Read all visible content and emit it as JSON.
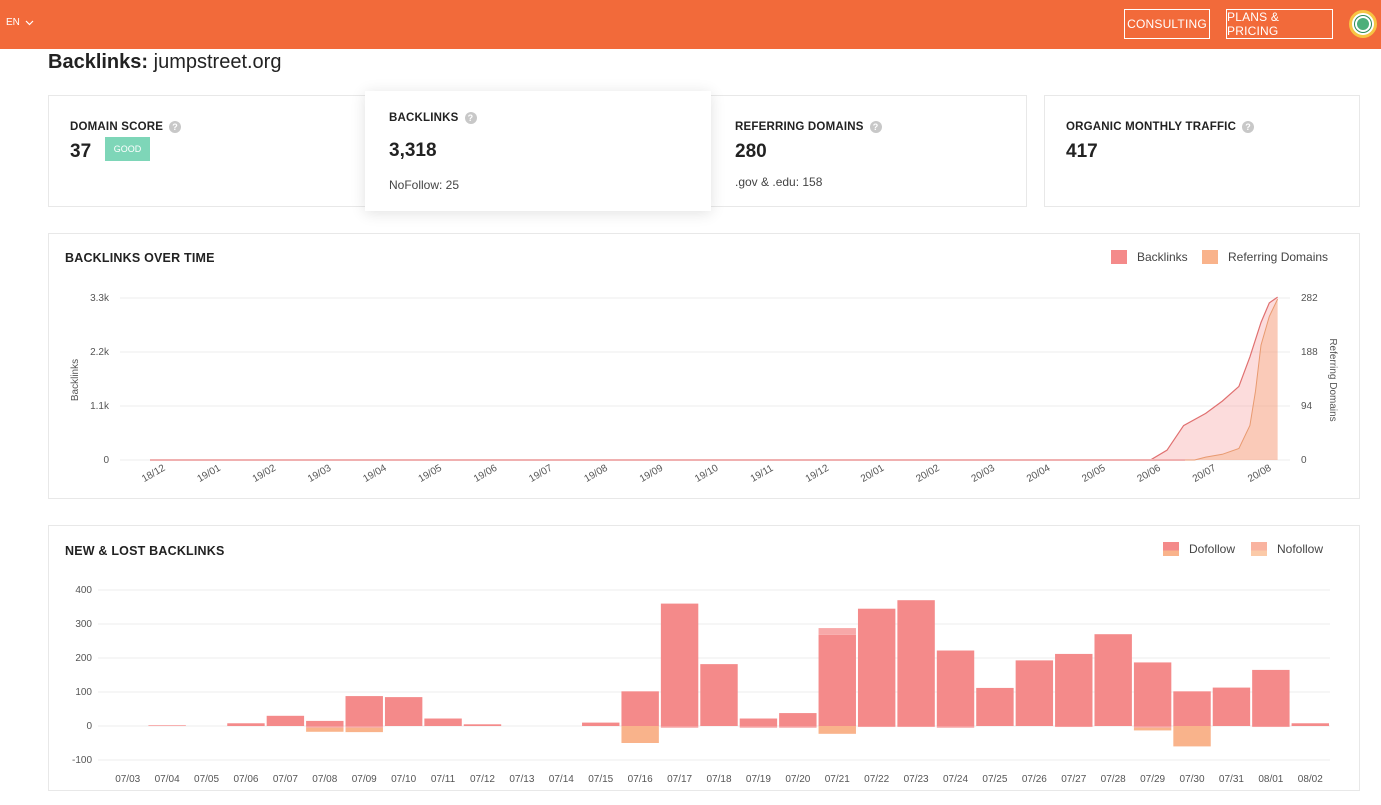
{
  "header": {
    "language": "EN",
    "consulting_label": "CONSULTING",
    "plans_label": "PLANS & PRICING",
    "brand_color": "#f26a3a"
  },
  "page": {
    "title_label": "Backlinks:",
    "title_domain": "jumpstreet.org"
  },
  "metrics": {
    "domain_score": {
      "title": "DOMAIN SCORE",
      "value": "37",
      "badge": "GOOD"
    },
    "backlinks": {
      "title": "BACKLINKS",
      "value": "3,318",
      "sub": "NoFollow: 25"
    },
    "referring_domains": {
      "title": "REFERRING DOMAINS",
      "value": "280",
      "sub": ".gov & .edu: 158"
    },
    "organic_traffic": {
      "title": "ORGANIC MONTHLY TRAFFIC",
      "value": "417"
    }
  },
  "chart_data": [
    {
      "type": "area",
      "title": "BACKLINKS OVER TIME",
      "ylabel": "Backlinks",
      "y2label": "Referring Domains",
      "ylim": [
        0,
        3300
      ],
      "y2lim": [
        0,
        282
      ],
      "y_ticks": [
        "0",
        "1.1k",
        "2.2k",
        "3.3k"
      ],
      "y2_ticks": [
        "0",
        "94",
        "188",
        "282"
      ],
      "categories": [
        "18/12",
        "19/01",
        "19/02",
        "19/03",
        "19/04",
        "19/05",
        "19/06",
        "19/07",
        "19/08",
        "19/09",
        "19/10",
        "19/11",
        "19/12",
        "20/01",
        "20/02",
        "20/03",
        "20/04",
        "20/05",
        "20/06",
        "20/07",
        "20/08"
      ],
      "legend": [
        "Backlinks",
        "Referring Domains"
      ],
      "colors": [
        "#f48a8a",
        "#f9b38b"
      ],
      "series": [
        {
          "name": "Backlinks",
          "x": [
            0,
            18,
            18.3,
            18.6,
            19,
            19.3,
            19.6,
            19.8,
            20,
            20.15,
            20.3
          ],
          "values": [
            0,
            0,
            200,
            700,
            950,
            1200,
            1500,
            2100,
            2800,
            3200,
            3318
          ]
        },
        {
          "name": "Referring Domains",
          "x": [
            0,
            18.8,
            19,
            19.3,
            19.6,
            19.8,
            19.9,
            20,
            20.15,
            20.3
          ],
          "values": [
            0,
            0,
            5,
            10,
            20,
            60,
            120,
            200,
            250,
            280
          ]
        }
      ]
    },
    {
      "type": "bar",
      "title": "NEW & LOST BACKLINKS",
      "ylim": [
        -100,
        400
      ],
      "y_ticks": [
        "-100",
        "0",
        "100",
        "200",
        "300",
        "400"
      ],
      "legend": [
        "Dofollow",
        "Nofollow"
      ],
      "colors": [
        "#f48a8a",
        "#f9b38b"
      ],
      "categories": [
        "07/03",
        "07/04",
        "07/05",
        "07/06",
        "07/07",
        "07/08",
        "07/09",
        "07/10",
        "07/11",
        "07/12",
        "07/13",
        "07/14",
        "07/15",
        "07/16",
        "07/17",
        "07/18",
        "07/19",
        "07/20",
        "07/21",
        "07/22",
        "07/23",
        "07/24",
        "07/25",
        "07/26",
        "07/27",
        "07/28",
        "07/29",
        "07/30",
        "07/31",
        "08/01",
        "08/02"
      ],
      "series": [
        {
          "name": "Dofollow new",
          "values": [
            0,
            2,
            0,
            8,
            30,
            15,
            88,
            85,
            22,
            5,
            0,
            0,
            10,
            102,
            360,
            182,
            22,
            38,
            268,
            345,
            370,
            222,
            112,
            193,
            212,
            270,
            187,
            102,
            113,
            165,
            8
          ]
        },
        {
          "name": "Dofollow lost",
          "values": [
            0,
            0,
            0,
            0,
            0,
            -5,
            -5,
            0,
            0,
            0,
            0,
            0,
            0,
            0,
            -5,
            0,
            -5,
            -5,
            0,
            -3,
            -3,
            -5,
            0,
            0,
            -3,
            0,
            -5,
            0,
            0,
            -3,
            0
          ]
        },
        {
          "name": "Nofollow new",
          "values": [
            0,
            0,
            0,
            0,
            0,
            0,
            0,
            0,
            0,
            0,
            0,
            0,
            0,
            0,
            0,
            0,
            0,
            0,
            20,
            0,
            0,
            0,
            0,
            0,
            0,
            0,
            0,
            0,
            0,
            0,
            0
          ]
        },
        {
          "name": "Nofollow lost",
          "values": [
            0,
            0,
            0,
            0,
            0,
            -12,
            -13,
            0,
            0,
            0,
            0,
            0,
            0,
            -50,
            0,
            0,
            0,
            0,
            -23,
            0,
            0,
            0,
            0,
            0,
            0,
            0,
            -8,
            -60,
            0,
            0,
            0
          ]
        }
      ]
    }
  ]
}
